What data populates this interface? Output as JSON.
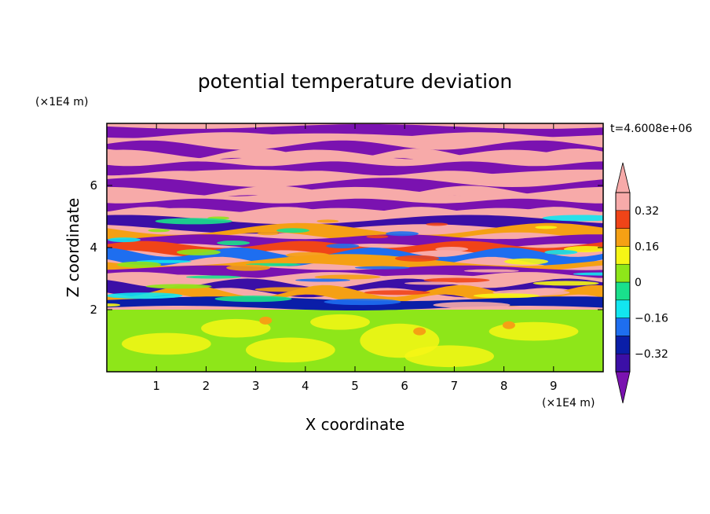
{
  "chart_data": {
    "type": "heatmap",
    "title": "potential temperature deviation",
    "xlabel": "X coordinate",
    "ylabel": "Z coordinate",
    "x_unit": "(×1E4 m)",
    "y_unit": "(×1E4 m)",
    "time_label": "t=4.6008e+06",
    "xlim": [
      0,
      10
    ],
    "ylim": [
      0,
      8
    ],
    "x_ticks": [
      1,
      2,
      3,
      4,
      5,
      6,
      7,
      8,
      9
    ],
    "y_ticks": [
      2,
      4,
      6
    ],
    "colorbar": {
      "levels": [
        -0.4,
        -0.32,
        -0.24,
        -0.16,
        -0.08,
        0,
        0.08,
        0.16,
        0.24,
        0.32,
        0.4
      ],
      "labels": [
        "0.32",
        "0.16",
        "0",
        "−0.16",
        "−0.32"
      ],
      "label_values": [
        0.32,
        0.16,
        0,
        -0.16,
        -0.32
      ],
      "colors": [
        "#7a12b0",
        "#3b0fa6",
        "#0a1ea8",
        "#1e6ef0",
        "#12e6f0",
        "#19e08c",
        "#8ee619",
        "#f6f615",
        "#f5a014",
        "#f04418",
        "#f7aaa9"
      ],
      "under_color": "#7a12b0",
      "over_color": "#f7aaa9"
    },
    "lower_layer": {
      "z_range": [
        0,
        2
      ],
      "dominant_value": 0,
      "description_values": [
        -0.08,
        0.08,
        0.16
      ]
    },
    "bands": [
      {
        "z": 7.75,
        "value": -0.4
      },
      {
        "z": 7.45,
        "value": 0.4
      },
      {
        "z": 7.15,
        "value": -0.4
      },
      {
        "z": 6.85,
        "value": 0.4
      },
      {
        "z": 6.55,
        "value": -0.4
      },
      {
        "z": 6.25,
        "value": 0.4
      },
      {
        "z": 5.95,
        "value": -0.4
      },
      {
        "z": 5.65,
        "value": 0.4
      },
      {
        "z": 5.35,
        "value": -0.4
      },
      {
        "z": 5.05,
        "value": 0.4
      },
      {
        "z": 4.75,
        "value": -0.35
      },
      {
        "z": 4.45,
        "value": 0.16
      },
      {
        "z": 4.2,
        "value": -0.4
      },
      {
        "z": 3.95,
        "value": 0.3
      },
      {
        "z": 3.7,
        "value": -0.2
      },
      {
        "z": 3.45,
        "value": 0.16
      },
      {
        "z": 3.2,
        "value": -0.4
      },
      {
        "z": 2.95,
        "value": 0.35
      },
      {
        "z": 2.7,
        "value": -0.35
      },
      {
        "z": 2.45,
        "value": 0.2
      },
      {
        "z": 2.2,
        "value": -0.3
      }
    ]
  }
}
